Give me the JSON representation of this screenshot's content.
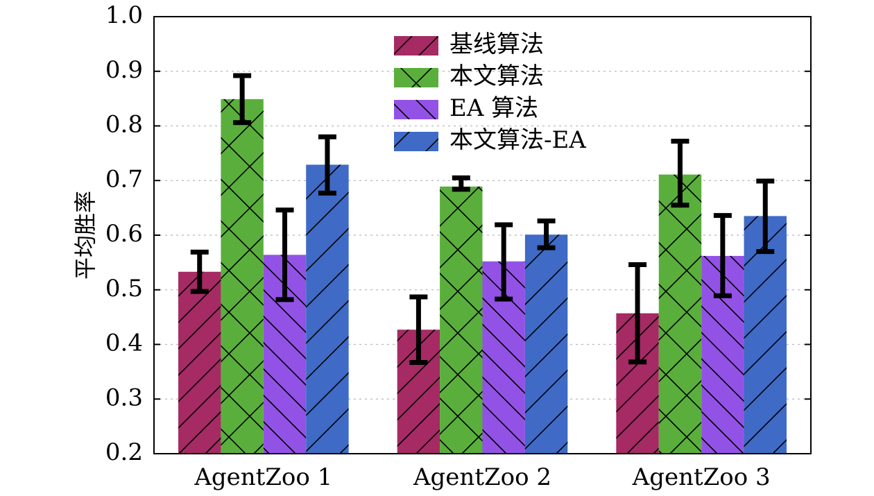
{
  "chart_data": {
    "type": "bar",
    "title": "",
    "xlabel": "",
    "ylabel": "平均胜率",
    "categories": [
      "AgentZoo 1",
      "AgentZoo 2",
      "AgentZoo 3"
    ],
    "ylim": [
      0.2,
      1.0
    ],
    "yticks": [
      0.2,
      0.3,
      0.4,
      0.5,
      0.6,
      0.7,
      0.8,
      0.9,
      1.0
    ],
    "ytick_labels": [
      "0.2",
      "0.3",
      "0.4",
      "0.5",
      "0.6",
      "0.7",
      "0.8",
      "0.9",
      "1.0"
    ],
    "grid": true,
    "legend_position": "top-center",
    "series": [
      {
        "name": "基线算法",
        "color": "#a62a63",
        "hatch": "forward-diagonal",
        "values": [
          0.533,
          0.427,
          0.457
        ],
        "err_low": [
          0.497,
          0.367,
          0.368
        ],
        "err_high": [
          0.569,
          0.487,
          0.546
        ]
      },
      {
        "name": "本文算法",
        "color": "#5aaf3c",
        "hatch": "cross-diagonal",
        "values": [
          0.849,
          0.689,
          0.711
        ],
        "err_low": [
          0.806,
          0.684,
          0.655
        ],
        "err_high": [
          0.892,
          0.705,
          0.772
        ]
      },
      {
        "name": "EA 算法",
        "color": "#9352e6",
        "hatch": "back-diagonal",
        "values": [
          0.564,
          0.552,
          0.562
        ],
        "err_low": [
          0.482,
          0.483,
          0.489
        ],
        "err_high": [
          0.646,
          0.619,
          0.636
        ]
      },
      {
        "name": "本文算法-EA",
        "color": "#3f6ac6",
        "hatch": "forward-diagonal-sparse",
        "values": [
          0.729,
          0.601,
          0.635
        ],
        "err_low": [
          0.677,
          0.577,
          0.57
        ],
        "err_high": [
          0.78,
          0.626,
          0.699
        ]
      }
    ]
  }
}
